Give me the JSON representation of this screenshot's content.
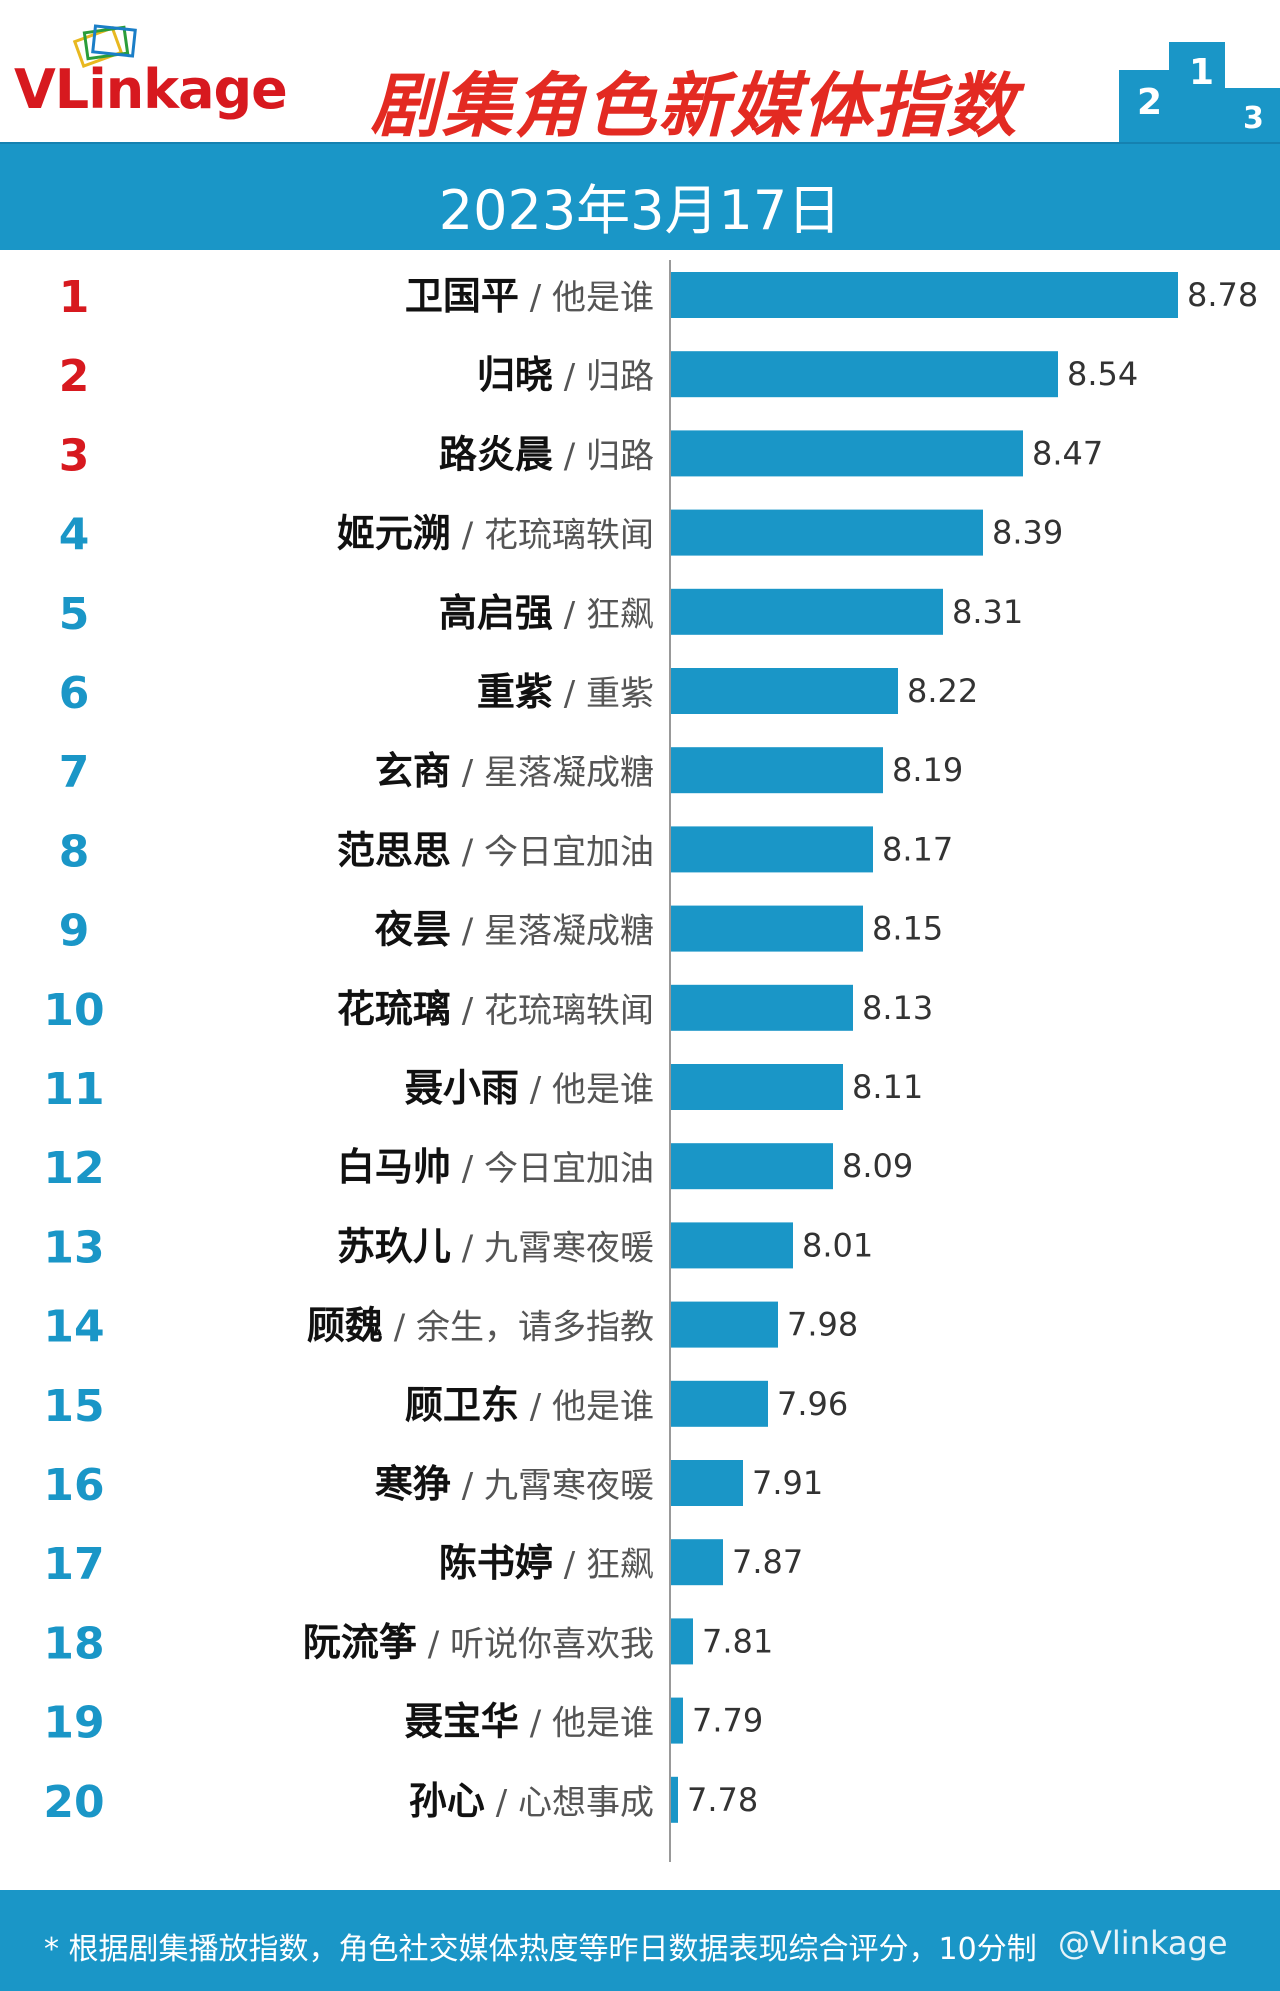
{
  "header": {
    "logo_text": "VLinkage",
    "title": "剧集角色新媒体指数",
    "date": "2023年3月17日"
  },
  "footer": {
    "note": "* 根据剧集播放指数，角色社交媒体热度等昨日数据表现综合评分，10分制",
    "watermark": "@Vlinkage"
  },
  "colors": {
    "bar": "#1a96c7",
    "top3_rank": "#d7191f",
    "rank": "#1a96c7",
    "title": "#e32a22"
  },
  "chart_data": {
    "type": "bar",
    "orientation": "horizontal",
    "title": "剧集角色新媒体指数",
    "xlim": [
      7.0,
      9.0
    ],
    "rows": [
      {
        "rank": "1",
        "name": "卫国平",
        "drama": "他是谁",
        "value": 8.78
      },
      {
        "rank": "2",
        "name": "归晓",
        "drama": "归路",
        "value": 8.54
      },
      {
        "rank": "3",
        "name": "路炎晨",
        "drama": "归路",
        "value": 8.47
      },
      {
        "rank": "4",
        "name": "姬元溯",
        "drama": "花琉璃轶闻",
        "value": 8.39
      },
      {
        "rank": "5",
        "name": "高启强",
        "drama": "狂飙",
        "value": 8.31
      },
      {
        "rank": "6",
        "name": "重紫",
        "drama": "重紫",
        "value": 8.22
      },
      {
        "rank": "7",
        "name": "玄商",
        "drama": "星落凝成糖",
        "value": 8.19
      },
      {
        "rank": "8",
        "name": "范思思",
        "drama": "今日宜加油",
        "value": 8.17
      },
      {
        "rank": "9",
        "name": "夜昙",
        "drama": "星落凝成糖",
        "value": 8.15
      },
      {
        "rank": "10",
        "name": "花琉璃",
        "drama": "花琉璃轶闻",
        "value": 8.13
      },
      {
        "rank": "11",
        "name": "聂小雨",
        "drama": "他是谁",
        "value": 8.11
      },
      {
        "rank": "12",
        "name": "白马帅",
        "drama": "今日宜加油",
        "value": 8.09
      },
      {
        "rank": "13",
        "name": "苏玖儿",
        "drama": "九霄寒夜暖",
        "value": 8.01
      },
      {
        "rank": "14",
        "name": "顾魏",
        "drama": "余生，请多指教",
        "value": 7.98
      },
      {
        "rank": "15",
        "name": "顾卫东",
        "drama": "他是谁",
        "value": 7.96
      },
      {
        "rank": "16",
        "name": "寒狰",
        "drama": "九霄寒夜暖",
        "value": 7.91
      },
      {
        "rank": "17",
        "name": "陈书婷",
        "drama": "狂飙",
        "value": 7.87
      },
      {
        "rank": "18",
        "name": "阮流筝",
        "drama": "听说你喜欢我",
        "value": 7.81
      },
      {
        "rank": "19",
        "name": "聂宝华",
        "drama": "他是谁",
        "value": 7.79
      },
      {
        "rank": "20",
        "name": "孙心",
        "drama": "心想事成",
        "value": 7.78
      }
    ]
  }
}
